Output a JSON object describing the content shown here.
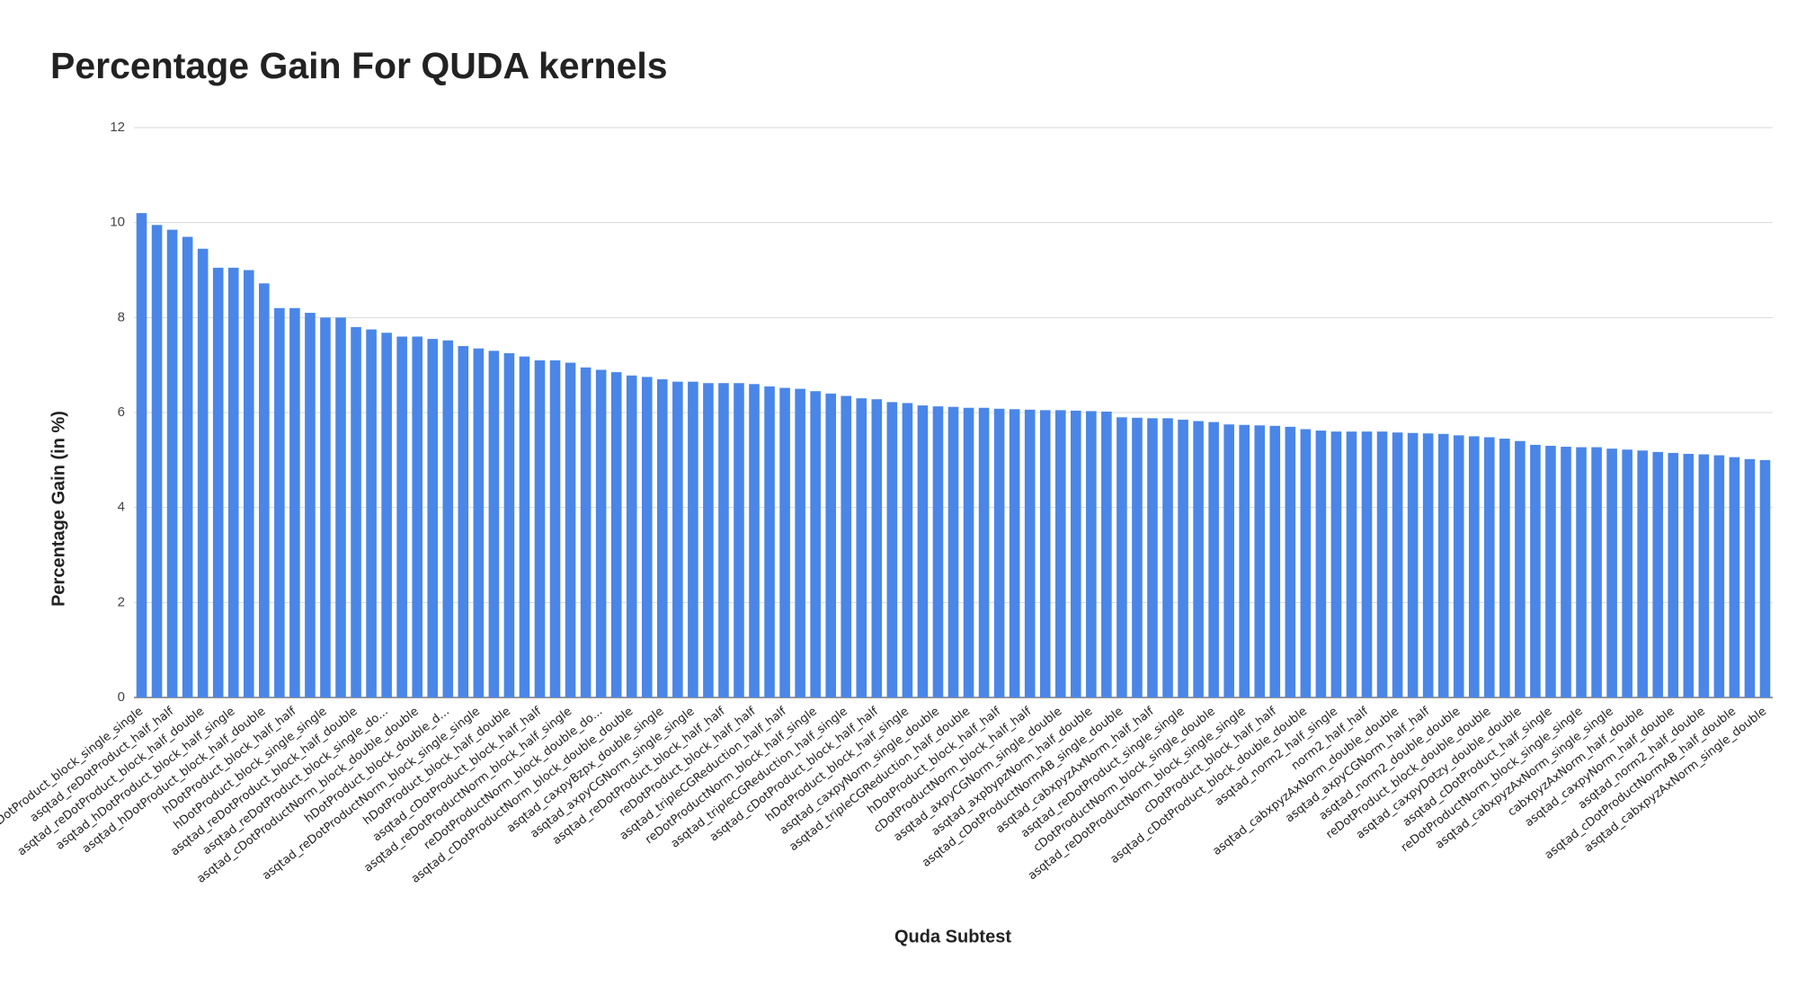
{
  "chart_data": {
    "type": "bar",
    "title": "Percentage Gain For QUDA kernels",
    "x_label": "Quda Subtest",
    "y_label": "Percentage Gain (in %)",
    "color": "#4a86e8",
    "grid": true,
    "ylim": [
      0,
      12
    ],
    "yticks": [
      0,
      2,
      4,
      6,
      8,
      10,
      12
    ],
    "categories": [
      "asqtad_hDotProduct_block_single_single",
      null,
      "asqtad_reDotProduct_half_half",
      null,
      "asqtad_reDotProduct_block_half_double",
      null,
      "asqtad_hDotProduct_block_half_single",
      null,
      "asqtad_hDotProduct_block_half_double",
      null,
      "hDotProduct_block_half_half",
      null,
      "hDotProduct_block_single_single",
      null,
      "asqtad_reDotProduct_block_half_double",
      null,
      "asqtad_reDotProduct_block_single_do...",
      null,
      "asqtad_cDotProductNorm_block_double_double",
      null,
      "hDotProduct_block_double_d...",
      null,
      "asqtad_reDotProductNorm_block_single_single",
      null,
      "hDotProduct_block_half_double",
      null,
      "asqtad_cDotProduct_block_half_half",
      null,
      "asqtad_reDotProductNorm_block_half_single",
      null,
      "reDotProductNorm_block_double_do...",
      null,
      "asqtad_cDotProductNorm_block_double_double",
      null,
      "asqtad_caxpyBzpx_double_single",
      null,
      "asqtad_axpyCGNorm_single_single",
      null,
      "asqtad_reDotProduct_block_half_half",
      null,
      "reDotProduct_block_half_half",
      null,
      "asqtad_tripleCGReduction_half_half",
      null,
      "reDotProductNorm_block_half_single",
      null,
      "asqtad_tripleCGReduction_half_single",
      null,
      "asqtad_cDotProduct_block_half_half",
      null,
      "hDotProduct_block_half_single",
      null,
      "asqtad_caxpyNorm_single_double",
      null,
      "asqtad_tripleCGReduction_half_double",
      null,
      "hDotProduct_block_half_half",
      null,
      "cDotProductNorm_block_half_half",
      null,
      "asqtad_axpyCGNorm_single_double",
      null,
      "asqtad_axpbypzNorm_half_double",
      null,
      "asqtad_cDotProductNormAB_single_double",
      null,
      "asqtad_cabxpyzAxNorm_half_half",
      null,
      "asqtad_reDotProduct_single_single",
      null,
      "cDotProductNorm_block_single_double",
      null,
      "asqtad_reDotProductNorm_block_single_single",
      null,
      "cDotProduct_block_half_half",
      null,
      "asqtad_cDotProduct_block_double_double",
      null,
      "asqtad_norm2_half_single",
      null,
      "norm2_half_half",
      null,
      "asqtad_cabxpyzAxNorm_double_double",
      null,
      "asqtad_axpyCGNorm_half_half",
      null,
      "asqtad_norm2_double_double",
      null,
      "reDotProduct_block_double_double",
      null,
      "asqtad_caxpyDotzy_double_double",
      null,
      "asqtad_cDotProduct_half_single",
      null,
      "reDotProductNorm_block_single_single",
      null,
      "asqtad_cabxpyzAxNorm_single_single",
      null,
      "cabxpyzAxNorm_half_double",
      null,
      "asqtad_caxpyNorm_half_double",
      null,
      "asqtad_norm2_half_double",
      null,
      "asqtad_cDotProductNormAB_half_double",
      null,
      "asqtad_cabxpyzAxNorm_single_double"
    ],
    "values": [
      10.2,
      9.95,
      9.85,
      9.7,
      9.45,
      9.05,
      9.05,
      9.0,
      8.72,
      8.2,
      8.2,
      8.1,
      8.0,
      8.0,
      7.8,
      7.75,
      7.68,
      7.6,
      7.6,
      7.55,
      7.52,
      7.4,
      7.35,
      7.3,
      7.25,
      7.18,
      7.1,
      7.1,
      7.05,
      6.95,
      6.9,
      6.85,
      6.78,
      6.75,
      6.7,
      6.65,
      6.65,
      6.62,
      6.62,
      6.62,
      6.6,
      6.55,
      6.52,
      6.5,
      6.45,
      6.4,
      6.35,
      6.3,
      6.28,
      6.22,
      6.2,
      6.15,
      6.13,
      6.12,
      6.1,
      6.1,
      6.08,
      6.07,
      6.06,
      6.05,
      6.05,
      6.04,
      6.03,
      6.02,
      5.9,
      5.89,
      5.88,
      5.88,
      5.85,
      5.82,
      5.8,
      5.75,
      5.74,
      5.73,
      5.72,
      5.7,
      5.65,
      5.62,
      5.6,
      5.6,
      5.6,
      5.6,
      5.58,
      5.57,
      5.56,
      5.55,
      5.52,
      5.5,
      5.48,
      5.45,
      5.4,
      5.32,
      5.3,
      5.28,
      5.27,
      5.27,
      5.24,
      5.22,
      5.2,
      5.17,
      5.15,
      5.13,
      5.12,
      5.1,
      5.06,
      5.02,
      5.0
    ]
  }
}
